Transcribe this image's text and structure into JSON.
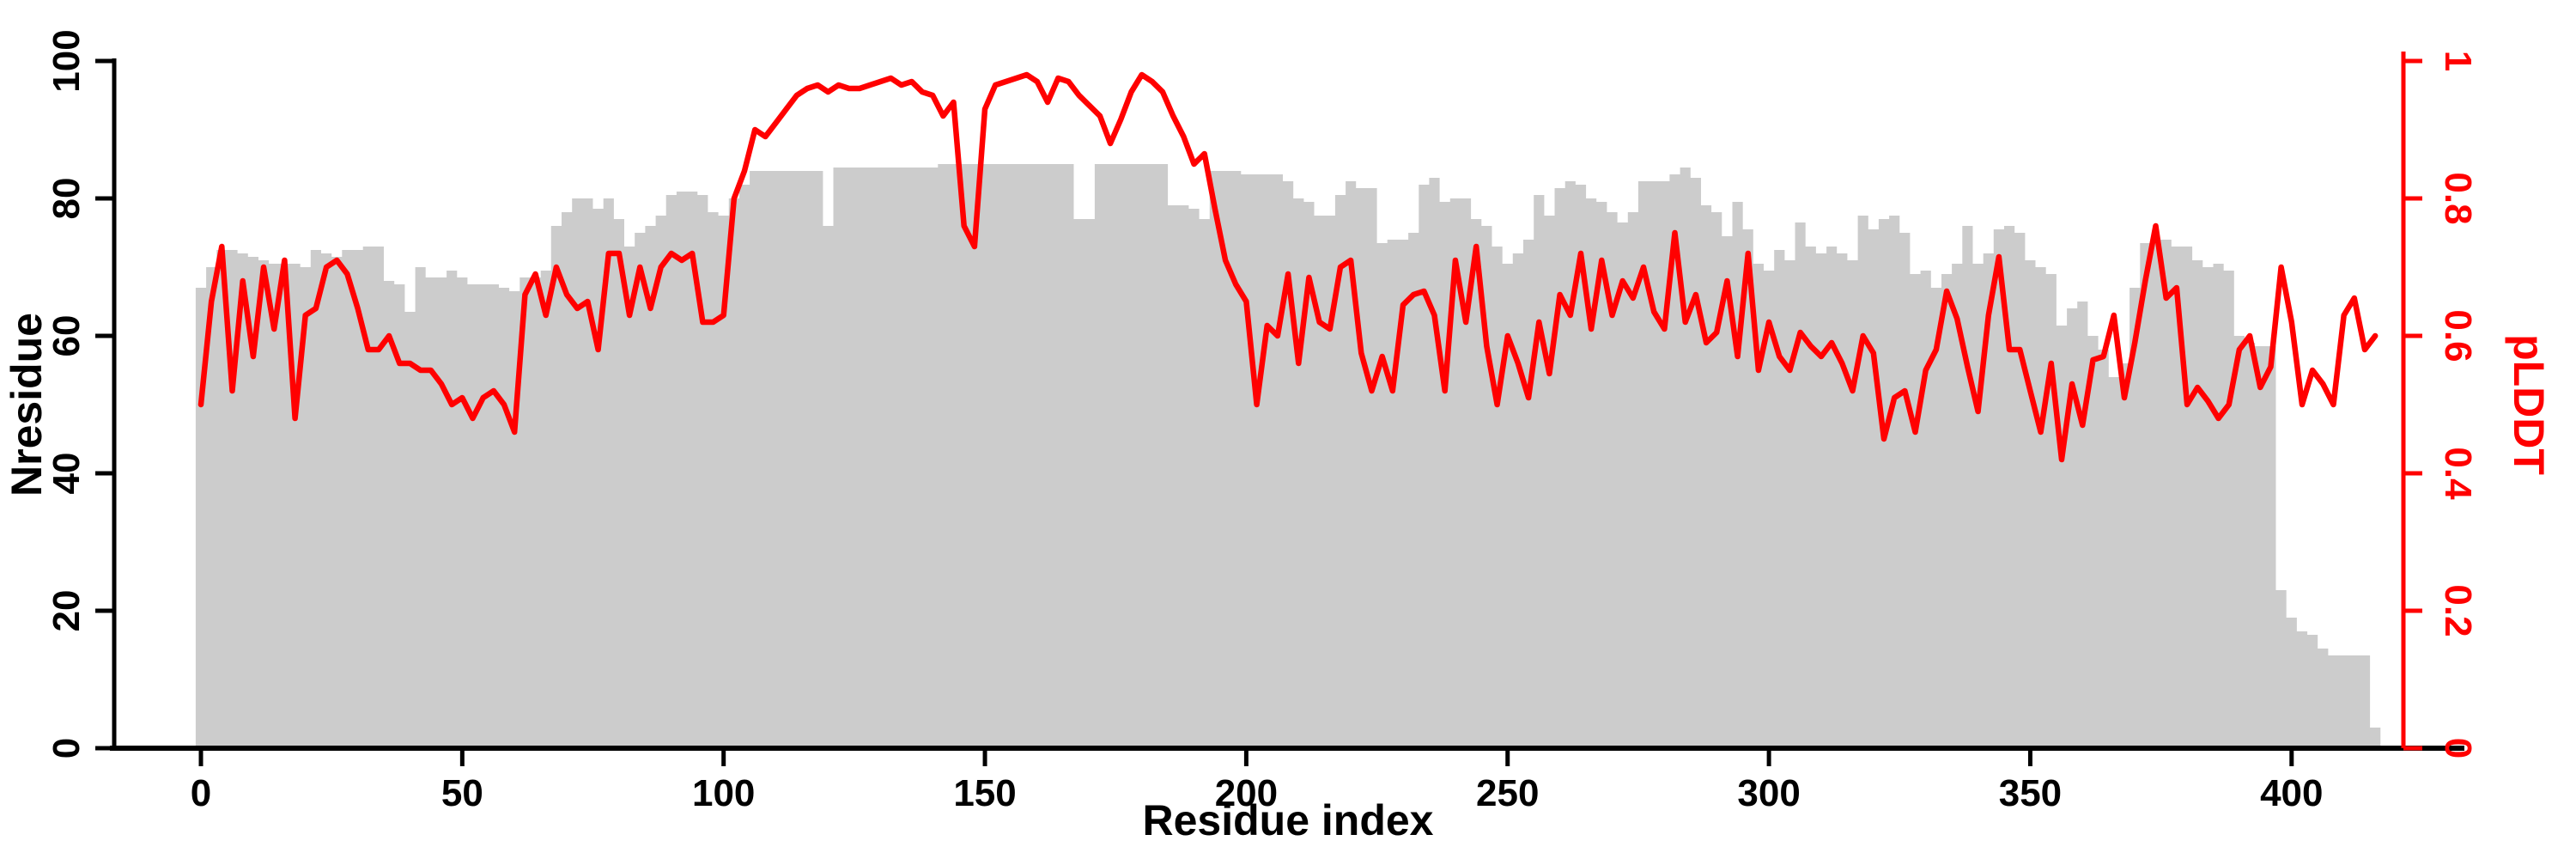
{
  "figure": {
    "background_color": "#ffffff",
    "bar_color": "#cccccc",
    "line_color": "#ff0000",
    "axis_color_left": "#000000",
    "axis_color_bottom": "#000000",
    "axis_color_right": "#ff0000"
  },
  "chart_data": {
    "type": "bar",
    "subtype": "dual-axis bar + line",
    "title": "",
    "xlabel": "Residue index",
    "ylabel_left": "Nresidue",
    "ylabel_right": "pLDDT",
    "grid": false,
    "legend": "none",
    "xlim": [
      -12,
      437
    ],
    "ylim_left": [
      0,
      100
    ],
    "ylim_right": [
      0,
      1
    ],
    "x_ticks": [
      0,
      50,
      100,
      150,
      200,
      250,
      300,
      350,
      400
    ],
    "y_ticks_left": [
      0,
      20,
      40,
      60,
      80,
      100
    ],
    "y_ticks_left_labels": [
      "0",
      "20",
      "40",
      "60",
      "80",
      "100"
    ],
    "y_ticks_right": [
      0,
      0.2,
      0.4,
      0.6,
      0.8,
      1
    ],
    "y_ticks_right_labels": [
      "0",
      "0.2",
      "0.4",
      "0.6",
      "0.8",
      "1"
    ],
    "x": [
      0,
      2,
      4,
      6,
      8,
      10,
      12,
      14,
      16,
      18,
      20,
      22,
      24,
      26,
      28,
      30,
      32,
      34,
      36,
      38,
      40,
      42,
      44,
      46,
      48,
      50,
      52,
      54,
      56,
      58,
      60,
      62,
      64,
      66,
      68,
      70,
      72,
      74,
      76,
      78,
      80,
      82,
      84,
      86,
      88,
      90,
      92,
      94,
      96,
      98,
      100,
      102,
      104,
      106,
      108,
      110,
      112,
      114,
      116,
      118,
      120,
      122,
      124,
      126,
      128,
      130,
      132,
      134,
      136,
      138,
      140,
      142,
      144,
      146,
      148,
      150,
      152,
      154,
      156,
      158,
      160,
      162,
      164,
      166,
      168,
      170,
      172,
      174,
      176,
      178,
      180,
      182,
      184,
      186,
      188,
      190,
      192,
      194,
      196,
      198,
      200,
      202,
      204,
      206,
      208,
      210,
      212,
      214,
      216,
      218,
      220,
      222,
      224,
      226,
      228,
      230,
      232,
      234,
      236,
      238,
      240,
      242,
      244,
      246,
      248,
      250,
      252,
      254,
      256,
      258,
      260,
      262,
      264,
      266,
      268,
      270,
      272,
      274,
      276,
      278,
      280,
      282,
      284,
      286,
      288,
      290,
      292,
      294,
      296,
      298,
      300,
      302,
      304,
      306,
      308,
      310,
      312,
      314,
      316,
      318,
      320,
      322,
      324,
      326,
      328,
      330,
      332,
      334,
      336,
      338,
      340,
      342,
      344,
      346,
      348,
      350,
      352,
      354,
      356,
      358,
      360,
      362,
      364,
      366,
      368,
      370,
      372,
      374,
      376,
      378,
      380,
      382,
      384,
      386,
      388,
      390,
      392,
      394,
      396,
      398,
      400,
      402,
      404,
      406,
      408,
      410,
      412,
      414,
      416
    ],
    "series": [
      {
        "name": "Nresidue",
        "type": "bar",
        "axis": "left",
        "color": "#cccccc",
        "values": [
          67,
          70,
          72.5,
          72.5,
          72,
          71.5,
          71,
          70.5,
          70.5,
          70.5,
          70,
          72.5,
          72,
          71.5,
          72.5,
          72.5,
          73,
          73,
          68,
          67.5,
          63.5,
          70,
          68.5,
          68.5,
          69.5,
          68.5,
          67.5,
          67.5,
          67.5,
          67,
          66.5,
          68.5,
          68.5,
          69.5,
          76,
          78,
          80,
          80,
          78.5,
          80,
          77,
          73,
          75,
          76,
          77.5,
          80.5,
          81,
          81,
          80.5,
          78,
          77.5,
          80,
          82,
          84,
          84,
          84,
          84,
          84,
          84,
          84,
          76,
          84.5,
          84.5,
          84.5,
          84.5,
          84.5,
          84.5,
          84.5,
          84.5,
          84.5,
          84.5,
          85,
          85,
          85,
          85,
          85,
          85,
          85,
          85,
          85,
          85,
          85,
          85,
          85,
          77,
          77,
          85,
          85,
          85,
          85,
          85,
          85,
          85,
          79,
          79,
          78.5,
          77,
          84,
          84,
          84,
          83.5,
          83.5,
          83.5,
          83.5,
          82.5,
          80,
          79.5,
          77.5,
          77.5,
          80.5,
          82.5,
          81.5,
          81.5,
          73.5,
          74,
          74,
          75,
          82,
          83,
          79.5,
          80,
          80,
          77,
          76,
          73,
          70.5,
          72,
          74,
          80.5,
          77.5,
          81.5,
          82.5,
          82,
          80,
          79.5,
          78,
          76.5,
          78,
          82.5,
          82.5,
          82.5,
          83.5,
          84.5,
          83,
          79,
          78,
          74.5,
          79.5,
          75.5,
          70.5,
          69.5,
          72.5,
          71,
          76.5,
          73,
          72,
          73,
          72,
          71,
          77.5,
          75.5,
          77,
          77.5,
          75,
          69,
          69.5,
          67,
          69,
          70.5,
          76,
          70.5,
          72,
          75.5,
          76,
          75,
          71,
          70,
          69,
          61.5,
          64,
          65,
          60,
          58,
          54,
          56,
          67,
          73.5,
          74,
          74,
          73,
          73,
          71,
          70,
          70.5,
          69.5,
          60,
          59,
          58.5,
          58.5,
          23,
          19,
          17,
          16.5,
          14.5,
          13.5,
          13.5,
          13.5,
          13.5,
          3
        ]
      },
      {
        "name": "pLDDT",
        "type": "line",
        "axis": "right",
        "color": "#ff0000",
        "values": [
          0.5,
          0.65,
          0.73,
          0.52,
          0.68,
          0.57,
          0.7,
          0.61,
          0.71,
          0.48,
          0.63,
          0.64,
          0.7,
          0.71,
          0.69,
          0.64,
          0.58,
          0.58,
          0.6,
          0.56,
          0.56,
          0.55,
          0.55,
          0.53,
          0.5,
          0.51,
          0.48,
          0.51,
          0.52,
          0.5,
          0.46,
          0.66,
          0.69,
          0.63,
          0.7,
          0.66,
          0.64,
          0.65,
          0.58,
          0.72,
          0.72,
          0.63,
          0.7,
          0.64,
          0.7,
          0.72,
          0.71,
          0.72,
          0.62,
          0.62,
          0.63,
          0.8,
          0.84,
          0.9,
          0.89,
          0.91,
          0.93,
          0.95,
          0.96,
          0.965,
          0.955,
          0.965,
          0.96,
          0.96,
          0.965,
          0.97,
          0.975,
          0.965,
          0.97,
          0.955,
          0.95,
          0.92,
          0.94,
          0.76,
          0.73,
          0.93,
          0.965,
          0.97,
          0.975,
          0.98,
          0.97,
          0.94,
          0.975,
          0.97,
          0.95,
          0.935,
          0.92,
          0.88,
          0.915,
          0.955,
          0.98,
          0.97,
          0.955,
          0.92,
          0.89,
          0.85,
          0.865,
          0.785,
          0.71,
          0.675,
          0.65,
          0.5,
          0.615,
          0.6,
          0.69,
          0.56,
          0.685,
          0.62,
          0.61,
          0.7,
          0.71,
          0.575,
          0.52,
          0.57,
          0.52,
          0.645,
          0.66,
          0.665,
          0.63,
          0.52,
          0.71,
          0.62,
          0.73,
          0.585,
          0.5,
          0.6,
          0.56,
          0.51,
          0.62,
          0.545,
          0.66,
          0.63,
          0.72,
          0.61,
          0.71,
          0.63,
          0.68,
          0.655,
          0.7,
          0.635,
          0.61,
          0.75,
          0.62,
          0.66,
          0.59,
          0.605,
          0.68,
          0.57,
          0.72,
          0.55,
          0.62,
          0.57,
          0.55,
          0.605,
          0.585,
          0.57,
          0.59,
          0.56,
          0.52,
          0.6,
          0.575,
          0.45,
          0.51,
          0.52,
          0.46,
          0.55,
          0.58,
          0.665,
          0.625,
          0.555,
          0.49,
          0.63,
          0.715,
          0.58,
          0.58,
          0.52,
          0.46,
          0.56,
          0.42,
          0.53,
          0.47,
          0.565,
          0.57,
          0.63,
          0.51,
          0.59,
          0.68,
          0.76,
          0.655,
          0.67,
          0.5,
          0.525,
          0.505,
          0.48,
          0.5,
          0.58,
          0.6,
          0.525,
          0.555,
          0.7,
          0.62,
          0.5,
          0.55,
          0.53,
          0.5,
          0.63,
          0.655,
          0.58,
          0.6
        ]
      }
    ]
  }
}
